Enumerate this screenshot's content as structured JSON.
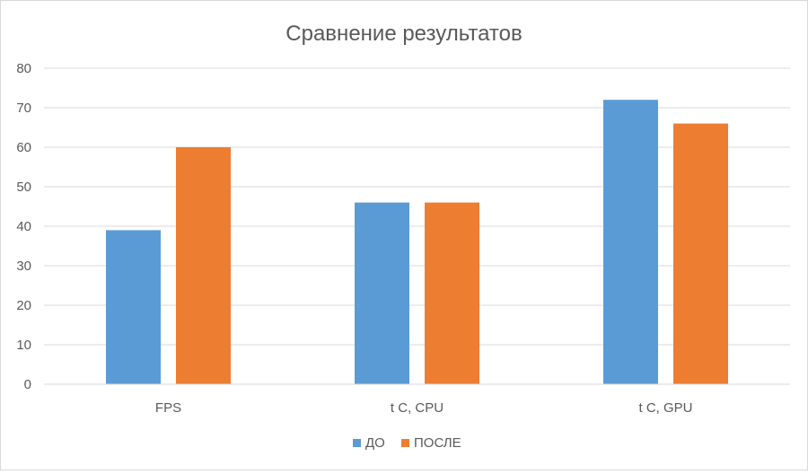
{
  "chart_data": {
    "type": "bar",
    "title": "Сравнение результатов",
    "categories": [
      "FPS",
      "t C, CPU",
      "t C, GPU"
    ],
    "series": [
      {
        "name": "ДО",
        "values": [
          39,
          46,
          72
        ],
        "color": "#5B9BD5"
      },
      {
        "name": "ПОСЛЕ",
        "values": [
          60,
          46,
          66
        ],
        "color": "#ED7D31"
      }
    ],
    "ylim": [
      0,
      80
    ],
    "yticks": [
      0,
      10,
      20,
      30,
      40,
      50,
      60,
      70,
      80
    ],
    "grid": true,
    "legend_position": "bottom",
    "xlabel": "",
    "ylabel": ""
  }
}
